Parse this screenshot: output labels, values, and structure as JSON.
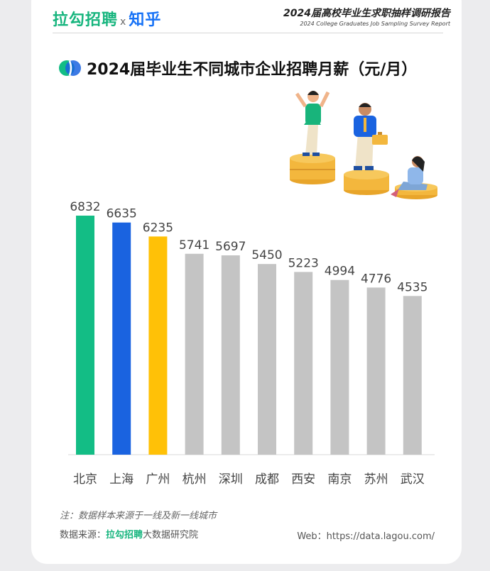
{
  "header": {
    "brand_lagou": "拉勾招聘",
    "brand_x": "x",
    "brand_zhihu": "知乎",
    "report_cn": "2024届高校毕业生求职抽样调研报告",
    "report_en": "2024 College Graduates Job Sampling Survey Report"
  },
  "chart_data": {
    "type": "bar",
    "title": "2024届毕业生不同城市企业招聘月薪（元/月）",
    "categories": [
      "北京",
      "上海",
      "广州",
      "杭州",
      "深圳",
      "成都",
      "西安",
      "南京",
      "苏州",
      "武汉"
    ],
    "values": [
      6832,
      6635,
      6235,
      5741,
      5697,
      5450,
      5223,
      4994,
      4776,
      4535
    ],
    "colors": [
      "#13bd85",
      "#1a63e0",
      "#ffc107",
      "#c4c4c4",
      "#c4c4c4",
      "#c4c4c4",
      "#c4c4c4",
      "#c4c4c4",
      "#c4c4c4",
      "#c4c4c4"
    ],
    "ylim": [
      0,
      6832
    ],
    "grid": false,
    "legend": "none"
  },
  "footer": {
    "note": "注：数据样本来源于一线及新一线城市",
    "source_label": "数据来源：",
    "source_brand": "拉勾招聘",
    "source_rest": "大数据研究院",
    "web": "Web：https://data.lagou.com/"
  },
  "accent_colors": {
    "lagou_green": "#17b57e",
    "zhihu_blue": "#1772f6"
  }
}
